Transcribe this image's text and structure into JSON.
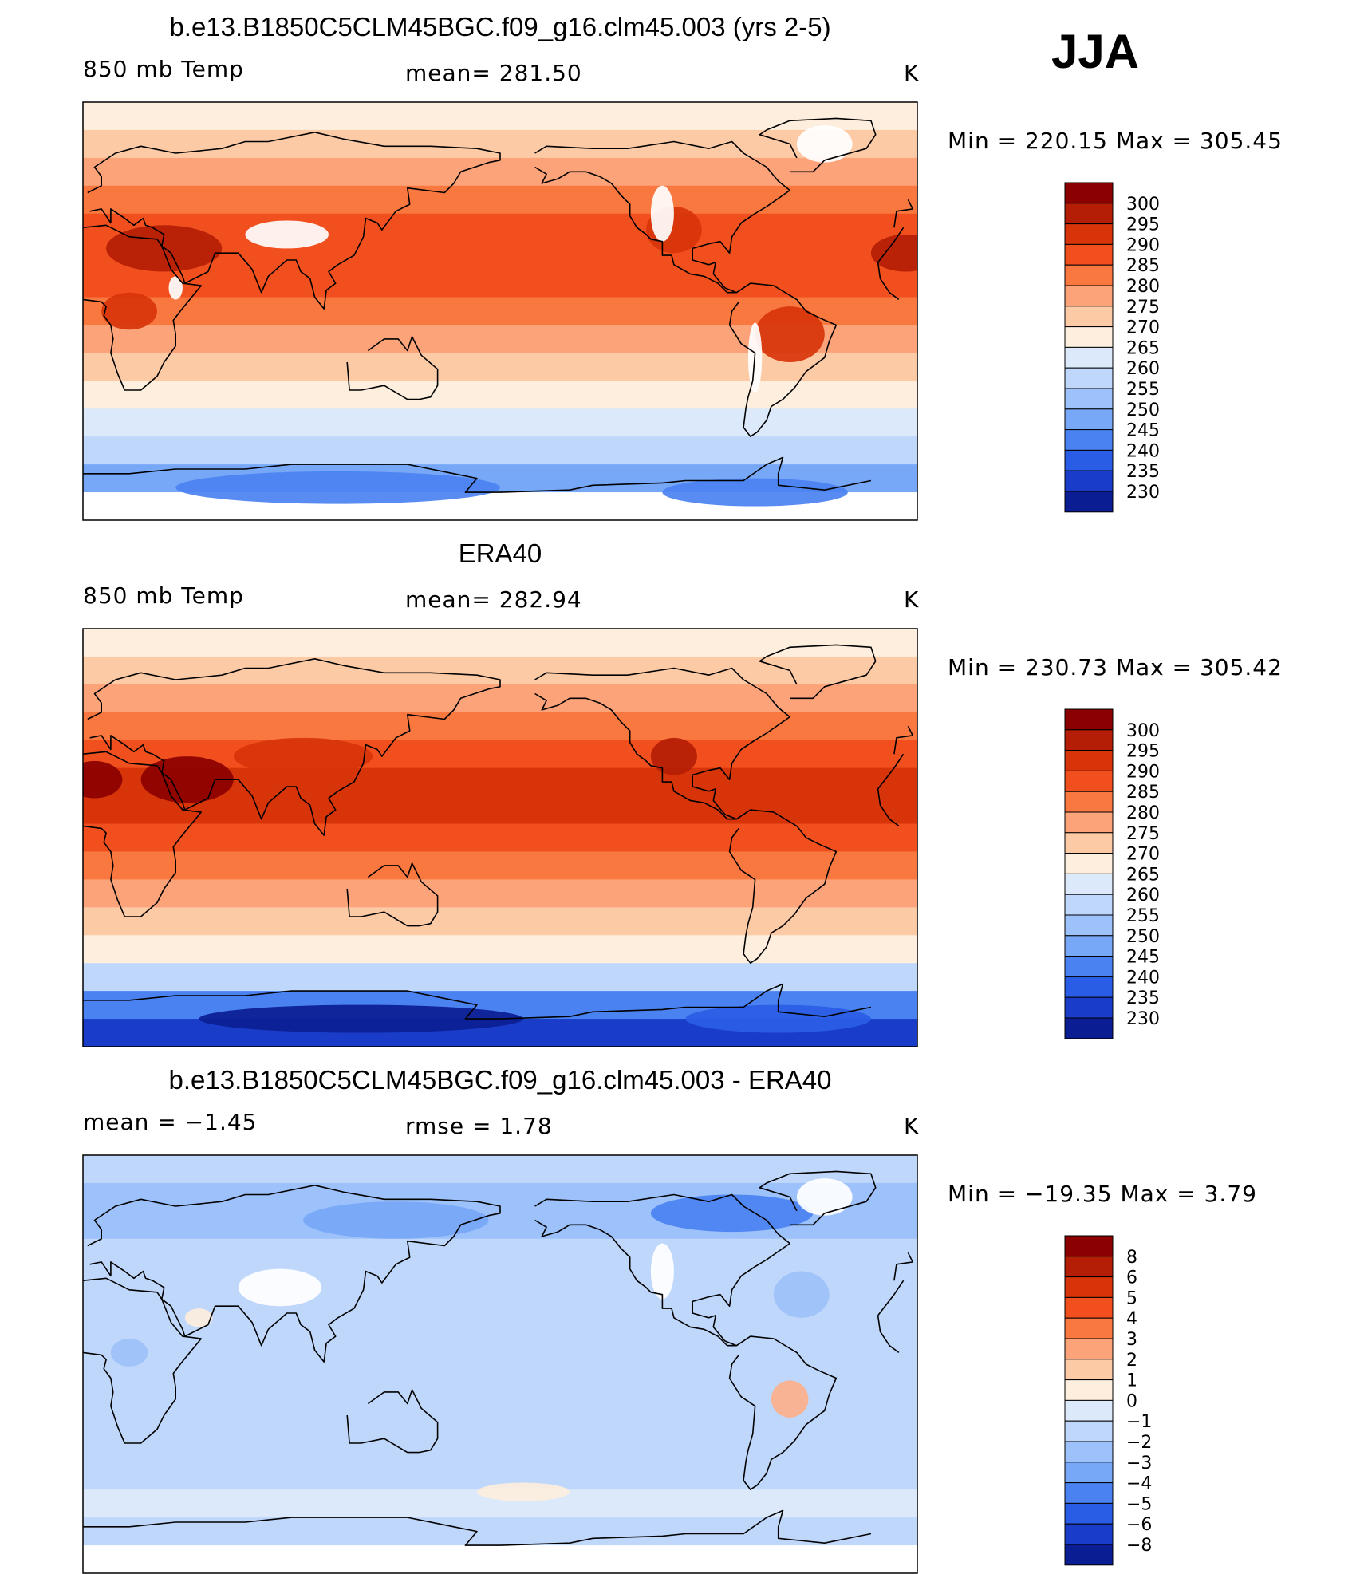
{
  "season": "JJA",
  "panels": [
    {
      "title": "b.e13.B1850C5CLM45BGC.f09_g16.clm45.003 (yrs 2-5)",
      "left_label": "850 mb Temp",
      "center_label": "mean= 281.50",
      "units": "K",
      "minmax": "Min = 220.15 Max = 305.45",
      "palette": "temp"
    },
    {
      "title": "ERA40",
      "left_label": "850 mb Temp",
      "center_label": "mean= 282.94",
      "units": "K",
      "minmax": "Min = 230.73 Max = 305.42",
      "palette": "temp"
    },
    {
      "title": "b.e13.B1850C5CLM45BGC.f09_g16.clm45.003 - ERA40",
      "left_label": "mean = −1.45",
      "center_label": "rmse = 1.78",
      "units": "K",
      "minmax": "Min = −19.35 Max = 3.79",
      "palette": "diff"
    }
  ],
  "colorbars": {
    "temp": {
      "labels": [
        "300",
        "295",
        "290",
        "285",
        "280",
        "275",
        "270",
        "265",
        "260",
        "255",
        "250",
        "245",
        "240",
        "235",
        "230"
      ],
      "colors": [
        "#8b0000",
        "#b51e06",
        "#d8340a",
        "#f1501e",
        "#f9783f",
        "#fca37a",
        "#fdcaa6",
        "#fdeedd",
        "#dbe9fb",
        "#bfd7fb",
        "#9dc1fa",
        "#77a7f7",
        "#4b82f1",
        "#2a5de6",
        "#1a3dc9",
        "#0b1d92"
      ]
    },
    "diff": {
      "labels": [
        "8",
        "6",
        "5",
        "4",
        "3",
        "2",
        "1",
        "0",
        "−1",
        "−2",
        "−3",
        "−4",
        "−5",
        "−6",
        "−8"
      ],
      "colors": [
        "#8b0000",
        "#b51e06",
        "#d8340a",
        "#f1501e",
        "#f9783f",
        "#fca37a",
        "#fdcaa6",
        "#fdeedd",
        "#dbe9fb",
        "#bfd7fb",
        "#9dc1fa",
        "#77a7f7",
        "#4b82f1",
        "#2a5de6",
        "#1a3dc9",
        "#0b1d92"
      ]
    }
  },
  "map_fields": [
    {
      "bands": [
        "#fdeedd",
        "#fdcaa6",
        "#fca37a",
        "#f9783f",
        "#f1501e",
        "#f1501e",
        "#f1501e",
        "#f9783f",
        "#fca37a",
        "#fdcaa6",
        "#fdeedd",
        "#dbe9fb",
        "#bfd7fb",
        "#77a7f7",
        "#ffffff"
      ],
      "blobs": [
        {
          "lon": 35,
          "lat": 27,
          "rx": 25,
          "ry": 10,
          "color": "#b51e06"
        },
        {
          "lon": -5,
          "lat": 25,
          "rx": 15,
          "ry": 8,
          "color": "#b51e06"
        },
        {
          "lon": -105,
          "lat": 35,
          "rx": 12,
          "ry": 10,
          "color": "#d8340a"
        },
        {
          "lon": -55,
          "lat": -10,
          "rx": 15,
          "ry": 12,
          "color": "#d8340a"
        },
        {
          "lon": 20,
          "lat": 0,
          "rx": 12,
          "ry": 8,
          "color": "#d8340a"
        },
        {
          "lon": -40,
          "lat": 72,
          "rx": 12,
          "ry": 8,
          "color": "#ffffff"
        },
        {
          "lon": 88,
          "lat": 33,
          "rx": 18,
          "ry": 6,
          "color": "#ffffff"
        },
        {
          "lon": -110,
          "lat": 42,
          "rx": 5,
          "ry": 12,
          "color": "#ffffff"
        },
        {
          "lon": -70,
          "lat": -20,
          "rx": 3,
          "ry": 15,
          "color": "#ffffff"
        },
        {
          "lon": 40,
          "lat": 10,
          "rx": 3,
          "ry": 5,
          "color": "#ffffff"
        },
        {
          "lon": 110,
          "lat": -76,
          "rx": 70,
          "ry": 7,
          "color": "#4b82f1"
        },
        {
          "lon": -70,
          "lat": -78,
          "rx": 40,
          "ry": 6,
          "color": "#4b82f1"
        }
      ]
    },
    {
      "bands": [
        "#fdeedd",
        "#fdcaa6",
        "#fca37a",
        "#f9783f",
        "#f1501e",
        "#d8340a",
        "#d8340a",
        "#f1501e",
        "#f9783f",
        "#fca37a",
        "#fdcaa6",
        "#fdeedd",
        "#bfd7fb",
        "#4b82f1",
        "#1a3dc9"
      ],
      "blobs": [
        {
          "lon": 45,
          "lat": 25,
          "rx": 20,
          "ry": 10,
          "color": "#8b0000"
        },
        {
          "lon": 5,
          "lat": 25,
          "rx": 12,
          "ry": 8,
          "color": "#8b0000"
        },
        {
          "lon": -105,
          "lat": 35,
          "rx": 10,
          "ry": 8,
          "color": "#b51e06"
        },
        {
          "lon": 95,
          "lat": 35,
          "rx": 30,
          "ry": 8,
          "color": "#d8340a"
        },
        {
          "lon": 120,
          "lat": -78,
          "rx": 70,
          "ry": 6,
          "color": "#0b1d92"
        },
        {
          "lon": -60,
          "lat": -78,
          "rx": 40,
          "ry": 6,
          "color": "#2a5de6"
        }
      ]
    },
    {
      "bands": [
        "#bfd7fb",
        "#9dc1fa",
        "#9dc1fa",
        "#bfd7fb",
        "#bfd7fb",
        "#bfd7fb",
        "#bfd7fb",
        "#bfd7fb",
        "#bfd7fb",
        "#bfd7fb",
        "#bfd7fb",
        "#bfd7fb",
        "#dbe9fb",
        "#bfd7fb",
        "#ffffff"
      ],
      "blobs": [
        {
          "lon": 135,
          "lat": 62,
          "rx": 40,
          "ry": 8,
          "color": "#77a7f7"
        },
        {
          "lon": -80,
          "lat": 65,
          "rx": 35,
          "ry": 8,
          "color": "#4b82f1"
        },
        {
          "lon": -40,
          "lat": 72,
          "rx": 12,
          "ry": 8,
          "color": "#ffffff"
        },
        {
          "lon": 85,
          "lat": 33,
          "rx": 18,
          "ry": 8,
          "color": "#ffffff"
        },
        {
          "lon": -55,
          "lat": -15,
          "rx": 8,
          "ry": 8,
          "color": "#fcb08a"
        },
        {
          "lon": -170,
          "lat": -55,
          "rx": 20,
          "ry": 4,
          "color": "#fdeedd"
        },
        {
          "lon": -50,
          "lat": 30,
          "rx": 12,
          "ry": 10,
          "color": "#9dc1fa"
        },
        {
          "lon": 20,
          "lat": 5,
          "rx": 8,
          "ry": 6,
          "color": "#9dc1fa"
        },
        {
          "lon": 50,
          "lat": 20,
          "rx": 6,
          "ry": 4,
          "color": "#fdeedd"
        },
        {
          "lon": -110,
          "lat": 40,
          "rx": 5,
          "ry": 12,
          "color": "#ffffff"
        }
      ]
    }
  ],
  "continents": [
    {
      "name": "north-america",
      "pts": [
        [
          -165,
          68
        ],
        [
          -160,
          71
        ],
        [
          -140,
          70
        ],
        [
          -125,
          70
        ],
        [
          -105,
          73
        ],
        [
          -90,
          70
        ],
        [
          -80,
          73
        ],
        [
          -75,
          68
        ],
        [
          -65,
          62
        ],
        [
          -60,
          56
        ],
        [
          -55,
          52
        ],
        [
          -65,
          45
        ],
        [
          -70,
          42
        ],
        [
          -76,
          38
        ],
        [
          -80,
          32
        ],
        [
          -81,
          25
        ],
        [
          -85,
          30
        ],
        [
          -90,
          29
        ],
        [
          -97,
          27
        ],
        [
          -97,
          22
        ],
        [
          -90,
          20
        ],
        [
          -87,
          21
        ],
        [
          -88,
          16
        ],
        [
          -83,
          10
        ],
        [
          -78,
          8
        ],
        [
          -82,
          8
        ],
        [
          -86,
          12
        ],
        [
          -92,
          15
        ],
        [
          -98,
          16
        ],
        [
          -105,
          20
        ],
        [
          -106,
          24
        ],
        [
          -110,
          24
        ],
        [
          -110,
          30
        ],
        [
          -115,
          31
        ],
        [
          -117,
          33
        ],
        [
          -121,
          36
        ],
        [
          -124,
          41
        ],
        [
          -124,
          46
        ],
        [
          -128,
          50
        ],
        [
          -132,
          55
        ],
        [
          -137,
          58
        ],
        [
          -143,
          60
        ],
        [
          -150,
          60
        ],
        [
          -155,
          57
        ],
        [
          -162,
          55
        ],
        [
          -160,
          59
        ],
        [
          -165,
          62
        ]
      ]
    },
    {
      "name": "greenland",
      "pts": [
        [
          -55,
          60
        ],
        [
          -45,
          60
        ],
        [
          -40,
          65
        ],
        [
          -22,
          70
        ],
        [
          -18,
          76
        ],
        [
          -20,
          82
        ],
        [
          -35,
          83
        ],
        [
          -55,
          82
        ],
        [
          -65,
          78
        ],
        [
          -68,
          76
        ],
        [
          -55,
          72
        ],
        [
          -52,
          66
        ]
      ]
    },
    {
      "name": "south-america",
      "pts": [
        [
          -78,
          8
        ],
        [
          -72,
          12
        ],
        [
          -62,
          11
        ],
        [
          -52,
          5
        ],
        [
          -48,
          0
        ],
        [
          -42,
          -3
        ],
        [
          -35,
          -6
        ],
        [
          -38,
          -13
        ],
        [
          -40,
          -20
        ],
        [
          -48,
          -26
        ],
        [
          -53,
          -33
        ],
        [
          -58,
          -38
        ],
        [
          -63,
          -41
        ],
        [
          -65,
          -47
        ],
        [
          -69,
          -52
        ],
        [
          -72,
          -54
        ],
        [
          -75,
          -50
        ],
        [
          -74,
          -42
        ],
        [
          -73,
          -37
        ],
        [
          -71,
          -30
        ],
        [
          -70,
          -18
        ],
        [
          -76,
          -14
        ],
        [
          -81,
          -6
        ],
        [
          -80,
          0
        ],
        [
          -77,
          4
        ]
      ]
    },
    {
      "name": "africa",
      "pts": [
        [
          -17,
          21
        ],
        [
          -16,
          14
        ],
        [
          -12,
          8
        ],
        [
          -8,
          5
        ],
        [
          0,
          5
        ],
        [
          8,
          4
        ],
        [
          10,
          2
        ],
        [
          9,
          -2
        ],
        [
          12,
          -6
        ],
        [
          13,
          -12
        ],
        [
          12,
          -18
        ],
        [
          15,
          -27
        ],
        [
          18,
          -34
        ],
        [
          25,
          -34
        ],
        [
          32,
          -28
        ],
        [
          35,
          -22
        ],
        [
          40,
          -15
        ],
        [
          40,
          -10
        ],
        [
          39,
          -4
        ],
        [
          42,
          0
        ],
        [
          51,
          11
        ],
        [
          43,
          12
        ],
        [
          38,
          18
        ],
        [
          34,
          28
        ],
        [
          32,
          31
        ],
        [
          20,
          32
        ],
        [
          10,
          37
        ],
        [
          0,
          36
        ],
        [
          -6,
          36
        ],
        [
          -10,
          30
        ],
        [
          -17,
          21
        ]
      ]
    },
    {
      "name": "eurasia",
      "pts": [
        [
          -10,
          36
        ],
        [
          -9,
          43
        ],
        [
          -2,
          44
        ],
        [
          -4,
          48
        ],
        [
          2,
          51
        ],
        [
          8,
          54
        ],
        [
          8,
          58
        ],
        [
          5,
          62
        ],
        [
          14,
          68
        ],
        [
          25,
          71
        ],
        [
          40,
          68
        ],
        [
          60,
          70
        ],
        [
          70,
          73
        ],
        [
          80,
          73
        ],
        [
          100,
          77
        ],
        [
          113,
          74
        ],
        [
          130,
          71
        ],
        [
          150,
          71
        ],
        [
          170,
          70
        ],
        [
          180,
          68
        ],
        [
          180,
          65
        ],
        [
          175,
          64
        ],
        [
          163,
          60
        ],
        [
          160,
          55
        ],
        [
          156,
          51
        ],
        [
          140,
          53
        ],
        [
          141,
          46
        ],
        [
          135,
          43
        ],
        [
          129,
          35
        ],
        [
          127,
          38
        ],
        [
          122,
          40
        ],
        [
          121,
          32
        ],
        [
          117,
          24
        ],
        [
          110,
          20
        ],
        [
          106,
          17
        ],
        [
          109,
          12
        ],
        [
          105,
          9
        ],
        [
          104,
          1
        ],
        [
          100,
          6
        ],
        [
          98,
          14
        ],
        [
          94,
          17
        ],
        [
          92,
          22
        ],
        [
          88,
          22
        ],
        [
          80,
          15
        ],
        [
          77,
          8
        ],
        [
          73,
          18
        ],
        [
          67,
          25
        ],
        [
          57,
          25
        ],
        [
          54,
          17
        ],
        [
          44,
          12
        ],
        [
          43,
          15
        ],
        [
          38,
          25
        ],
        [
          34,
          28
        ],
        [
          35,
          33
        ],
        [
          30,
          36
        ],
        [
          27,
          37
        ],
        [
          26,
          40
        ],
        [
          22,
          37
        ],
        [
          18,
          40
        ],
        [
          12,
          44
        ],
        [
          12,
          38
        ],
        [
          8,
          44
        ],
        [
          3,
          43
        ],
        [
          -8,
          37
        ]
      ]
    },
    {
      "name": "australia",
      "pts": [
        [
          114,
          -22
        ],
        [
          115,
          -34
        ],
        [
          120,
          -34
        ],
        [
          130,
          -32
        ],
        [
          135,
          -35
        ],
        [
          140,
          -38
        ],
        [
          145,
          -38
        ],
        [
          150,
          -37
        ],
        [
          153,
          -32
        ],
        [
          153,
          -25
        ],
        [
          146,
          -19
        ],
        [
          142,
          -11
        ],
        [
          140,
          -17
        ],
        [
          136,
          -12
        ],
        [
          130,
          -12
        ],
        [
          123,
          -17
        ]
      ]
    },
    {
      "name": "antarctica",
      "pts": [
        [
          -180,
          -78
        ],
        [
          -150,
          -77
        ],
        [
          -140,
          -75
        ],
        [
          -110,
          -74
        ],
        [
          -100,
          -73
        ],
        [
          -75,
          -73
        ],
        [
          -65,
          -66
        ],
        [
          -58,
          -63
        ],
        [
          -60,
          -70
        ],
        [
          -60,
          -75
        ],
        [
          -40,
          -77
        ],
        [
          -20,
          -73
        ],
        [
          0,
          -70
        ],
        [
          20,
          -70
        ],
        [
          40,
          -68
        ],
        [
          70,
          -68
        ],
        [
          90,
          -66
        ],
        [
          120,
          -66
        ],
        [
          140,
          -66
        ],
        [
          160,
          -70
        ],
        [
          170,
          -72
        ],
        [
          165,
          -78
        ],
        [
          180,
          -78
        ]
      ]
    }
  ]
}
